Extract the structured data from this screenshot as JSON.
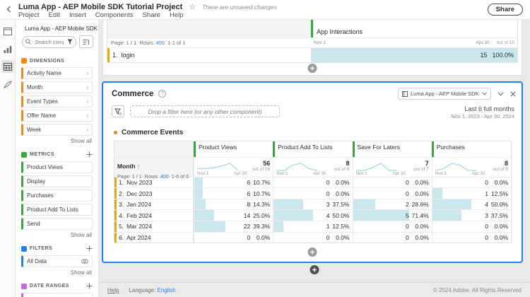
{
  "header": {
    "title": "Luma App - AEP Mobile SDK Tutorial Project",
    "unsaved": "There are unsaved changes",
    "menus": [
      "Project",
      "Edit",
      "Insert",
      "Components",
      "Share",
      "Help"
    ],
    "share_label": "Share"
  },
  "sidebar": {
    "dataview_label": "Luma App - AEP Mobile SDK Tutor...",
    "search_placeholder": "Search component",
    "sections": [
      {
        "label": "DIMENSIONS",
        "color": "#ef8a17",
        "plus": false,
        "chevrons": true,
        "items": [
          "Activity Name",
          "Month",
          "Event Types",
          "Offer Name",
          "Week"
        ],
        "show_all": "Show all"
      },
      {
        "label": "METRICS",
        "color": "#3ba63f",
        "plus": true,
        "chevrons": false,
        "items": [
          "Product Views",
          "Display",
          "Purchases",
          "Product Add To Lists",
          "Send"
        ],
        "show_all": "Show all"
      },
      {
        "label": "FILTERS",
        "color": "#2680eb",
        "plus": true,
        "chevrons": false,
        "venn": true,
        "items": [
          "All Data"
        ],
        "show_all": "Show all"
      },
      {
        "label": "DATE RANGES",
        "color": "#c46ad4",
        "plus": true,
        "chevrons": false,
        "items": [
          ""
        ],
        "show_all": null
      }
    ]
  },
  "panel1": {
    "column_label": "App Interactions",
    "page_info": "Page: 1 / 1",
    "rows_label": "Rows:",
    "rows_value": "400",
    "range": "1-1 of 1",
    "axis_start": "Nov 1",
    "axis_end": "Apr 30",
    "out_of": "out of 15",
    "row": {
      "num": "1.",
      "label": "login",
      "value": "15",
      "pct": "100.0%"
    }
  },
  "commerce": {
    "title": "Commerce",
    "help": "?",
    "dropdown_label": "Luma App - AEP Mobile SDK Tutori...",
    "dropzone": "Drop a filter here (or any other component)",
    "range_title": "Last 6 full months",
    "range_dates": "Nov 1, 2023 - Apr 30, 2024",
    "viz_title": "Commerce Events",
    "table": {
      "dim_label": "Month",
      "page_info": "Page: 1 / 1",
      "rows_label": "Rows:",
      "rows_value": "400",
      "range": "1-6 of 6",
      "axis_start": "Nov 1",
      "axis_end": "Apr 30",
      "columns": [
        {
          "label": "Product Views",
          "total": "56",
          "out_of": "out of 56",
          "spark": [
            6,
            6,
            8,
            14,
            22,
            0
          ]
        },
        {
          "label": "Product Add To Lists",
          "total": "8",
          "out_of": "out of 8",
          "spark": [
            0,
            0,
            3,
            4,
            1,
            0
          ]
        },
        {
          "label": "Save For Laters",
          "total": "7",
          "out_of": "out of 7",
          "spark": [
            0,
            0,
            2,
            5,
            0,
            0
          ]
        },
        {
          "label": "Purchases",
          "total": "8",
          "out_of": "out of 8",
          "spark": [
            0,
            1,
            4,
            3,
            0,
            0
          ]
        }
      ],
      "rows": [
        {
          "num": "1.",
          "month": "Nov 2023",
          "cells": [
            {
              "v": "6",
              "p": "10.7%"
            },
            {
              "v": "0",
              "p": "0.0%"
            },
            {
              "v": "0",
              "p": "0.0%"
            },
            {
              "v": "0",
              "p": "0.0%"
            }
          ]
        },
        {
          "num": "2.",
          "month": "Dec 2023",
          "cells": [
            {
              "v": "6",
              "p": "10.7%"
            },
            {
              "v": "0",
              "p": "0.0%"
            },
            {
              "v": "0",
              "p": "0.0%"
            },
            {
              "v": "1",
              "p": "12.5%"
            }
          ]
        },
        {
          "num": "3.",
          "month": "Jan 2024",
          "cells": [
            {
              "v": "8",
              "p": "14.3%"
            },
            {
              "v": "3",
              "p": "37.5%"
            },
            {
              "v": "2",
              "p": "28.6%"
            },
            {
              "v": "4",
              "p": "50.0%"
            }
          ]
        },
        {
          "num": "4.",
          "month": "Feb 2024",
          "cells": [
            {
              "v": "14",
              "p": "25.0%"
            },
            {
              "v": "4",
              "p": "50.0%"
            },
            {
              "v": "5",
              "p": "71.4%"
            },
            {
              "v": "3",
              "p": "37.5%"
            }
          ]
        },
        {
          "num": "5.",
          "month": "Mar 2024",
          "cells": [
            {
              "v": "22",
              "p": "39.3%"
            },
            {
              "v": "1",
              "p": "12.5%"
            },
            {
              "v": "0",
              "p": "0.0%"
            },
            {
              "v": "0",
              "p": "0.0%"
            }
          ]
        },
        {
          "num": "6.",
          "month": "Apr 2024",
          "cells": [
            {
              "v": "0",
              "p": "0.0%"
            },
            {
              "v": "0",
              "p": "0.0%"
            },
            {
              "v": "0",
              "p": "0.0%"
            },
            {
              "v": "0",
              "p": "0.0%"
            }
          ]
        }
      ]
    }
  },
  "footer": {
    "help": "Help",
    "language_label": "Language:",
    "language_value": "English",
    "copyright": "© 2024 Adobe. All Rights Reserved"
  },
  "colors": {
    "accent_blue": "#2680eb",
    "dimension_orange": "#ef8a17",
    "dimension_row_yellow": "#e2ab18",
    "metric_green": "#3ba63f",
    "filter_blue": "#2680eb",
    "daterange_purple": "#c46ad4",
    "bar_cyan": "#c9e7ec",
    "sparkline": "#8fcfdc"
  }
}
